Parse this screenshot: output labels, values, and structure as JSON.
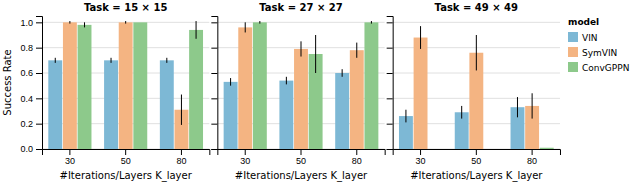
{
  "chart_data": [
    {
      "type": "bar",
      "title": "Task = 15 × 15",
      "categories": [
        "30",
        "50",
        "80"
      ],
      "series": [
        {
          "name": "VIN",
          "color": "#7db8d5",
          "values": [
            0.7,
            0.7,
            0.7
          ],
          "errors": [
            0.02,
            0.02,
            0.02
          ]
        },
        {
          "name": "SymVIN",
          "color": "#f4b482",
          "values": [
            1.0,
            1.0,
            0.31
          ],
          "errors": [
            0.01,
            0.01,
            0.12
          ]
        },
        {
          "name": "ConvGPPN",
          "color": "#8dc98b",
          "values": [
            0.98,
            1.0,
            0.94
          ],
          "errors": [
            0.02,
            0.0,
            0.07
          ]
        }
      ],
      "xlabel": "#Iterations/Layers K_layer",
      "ylabel": "Success Rate",
      "ylim": [
        0.0,
        1.05
      ],
      "yticks": [
        {
          "value": 0.0,
          "label": "0.0"
        },
        0.2,
        0.4,
        0.6,
        0.8,
        {
          "value": 1.0,
          "label": "1.0"
        }
      ],
      "grid": true
    },
    {
      "type": "bar",
      "title": "Task = 27 × 27",
      "categories": [
        "30",
        "50",
        "80"
      ],
      "series": [
        {
          "name": "VIN",
          "color": "#7db8d5",
          "values": [
            0.53,
            0.54,
            0.6
          ],
          "errors": [
            0.03,
            0.03,
            0.03
          ]
        },
        {
          "name": "SymVIN",
          "color": "#f4b482",
          "values": [
            0.96,
            0.79,
            0.78
          ],
          "errors": [
            0.04,
            0.06,
            0.06
          ]
        },
        {
          "name": "ConvGPPN",
          "color": "#8dc98b",
          "values": [
            1.0,
            0.75,
            1.0
          ],
          "errors": [
            0.01,
            0.15,
            0.01
          ]
        }
      ],
      "xlabel": "#Iterations/Layers K_layer",
      "ylim": [
        0.0,
        1.05
      ],
      "yticks": [
        0.0,
        0.2,
        0.4,
        0.6,
        0.8,
        1.0
      ],
      "tick_labels": "x",
      "grid": true
    },
    {
      "type": "bar",
      "title": "Task = 49 × 49",
      "categories": [
        "30",
        "50",
        "80"
      ],
      "series": [
        {
          "name": "VIN",
          "color": "#7db8d5",
          "values": [
            0.26,
            0.29,
            0.33
          ],
          "errors": [
            0.05,
            0.05,
            0.08
          ]
        },
        {
          "name": "SymVIN",
          "color": "#f4b482",
          "values": [
            0.88,
            0.76,
            0.34
          ],
          "errors": [
            0.09,
            0.14,
            0.1
          ]
        },
        {
          "name": "ConvGPPN",
          "color": "#8dc98b",
          "values": [
            0.0,
            0.0,
            0.01
          ],
          "errors": [
            0.0,
            0.0,
            0.0
          ]
        }
      ],
      "xlabel": "#Iterations/Layers K_layer",
      "ylim": [
        0.0,
        1.05
      ],
      "yticks": [
        0.0,
        0.2,
        0.4,
        0.6,
        0.8,
        1.0
      ],
      "tick_labels": "x",
      "grid": true,
      "legend": "right",
      "legend_title": "model"
    }
  ]
}
